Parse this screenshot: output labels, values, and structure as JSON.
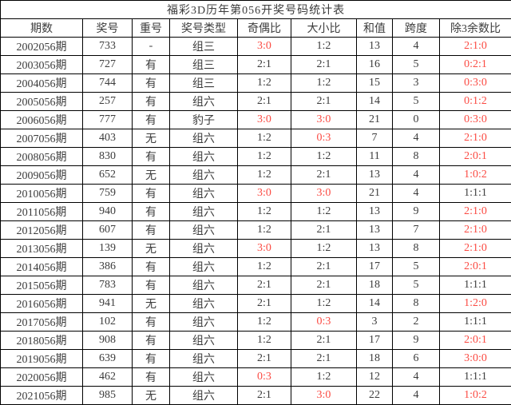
{
  "title": "福彩3D历年第056开奖号码统计表",
  "colors": {
    "highlight_red": "#fb4a42",
    "text_dark": "#3c3c3c",
    "border": "#000000",
    "background": "#ffffff"
  },
  "chart_data": {
    "type": "table",
    "title": "福彩3D历年第056开奖号码统计表",
    "columns": [
      {
        "key": "period",
        "label": "期数"
      },
      {
        "key": "number",
        "label": "奖号"
      },
      {
        "key": "repeat",
        "label": "重号"
      },
      {
        "key": "type",
        "label": "奖号类型"
      },
      {
        "key": "odd_even",
        "label": "奇偶比"
      },
      {
        "key": "big_small",
        "label": "大小比"
      },
      {
        "key": "sum",
        "label": "和值"
      },
      {
        "key": "span",
        "label": "跨度"
      },
      {
        "key": "mod3",
        "label": "除3余数比"
      }
    ],
    "rows": [
      {
        "period": "2002056期",
        "number": "733",
        "repeat": "-",
        "type": "组三",
        "odd_even": {
          "text": "3:0",
          "red": true
        },
        "big_small": {
          "text": "1:2",
          "red": false
        },
        "sum": "13",
        "span": "4",
        "mod3": {
          "text": "2:1:0",
          "red": true
        }
      },
      {
        "period": "2003056期",
        "number": "727",
        "repeat": "有",
        "type": "组三",
        "odd_even": {
          "text": "2:1",
          "red": false
        },
        "big_small": {
          "text": "2:1",
          "red": false
        },
        "sum": "16",
        "span": "5",
        "mod3": {
          "text": "0:2:1",
          "red": true
        }
      },
      {
        "period": "2004056期",
        "number": "744",
        "repeat": "有",
        "type": "组三",
        "odd_even": {
          "text": "1:2",
          "red": false
        },
        "big_small": {
          "text": "1:2",
          "red": false
        },
        "sum": "15",
        "span": "3",
        "mod3": {
          "text": "0:3:0",
          "red": true
        }
      },
      {
        "period": "2005056期",
        "number": "257",
        "repeat": "有",
        "type": "组六",
        "odd_even": {
          "text": "2:1",
          "red": false
        },
        "big_small": {
          "text": "2:1",
          "red": false
        },
        "sum": "14",
        "span": "5",
        "mod3": {
          "text": "0:1:2",
          "red": true
        }
      },
      {
        "period": "2006056期",
        "number": "777",
        "repeat": "有",
        "type": "豹子",
        "odd_even": {
          "text": "3:0",
          "red": true
        },
        "big_small": {
          "text": "3:0",
          "red": true
        },
        "sum": "21",
        "span": "0",
        "mod3": {
          "text": "0:3:0",
          "red": true
        }
      },
      {
        "period": "2007056期",
        "number": "403",
        "repeat": "无",
        "type": "组六",
        "odd_even": {
          "text": "1:2",
          "red": false
        },
        "big_small": {
          "text": "0:3",
          "red": true
        },
        "sum": "7",
        "span": "4",
        "mod3": {
          "text": "2:1:0",
          "red": true
        }
      },
      {
        "period": "2008056期",
        "number": "830",
        "repeat": "有",
        "type": "组六",
        "odd_even": {
          "text": "1:2",
          "red": false
        },
        "big_small": {
          "text": "1:2",
          "red": false
        },
        "sum": "11",
        "span": "8",
        "mod3": {
          "text": "2:0:1",
          "red": true
        }
      },
      {
        "period": "2009056期",
        "number": "652",
        "repeat": "无",
        "type": "组六",
        "odd_even": {
          "text": "1:2",
          "red": false
        },
        "big_small": {
          "text": "2:1",
          "red": false
        },
        "sum": "13",
        "span": "4",
        "mod3": {
          "text": "1:0:2",
          "red": true
        }
      },
      {
        "period": "2010056期",
        "number": "759",
        "repeat": "有",
        "type": "组六",
        "odd_even": {
          "text": "3:0",
          "red": true
        },
        "big_small": {
          "text": "3:0",
          "red": true
        },
        "sum": "21",
        "span": "4",
        "mod3": {
          "text": "1:1:1",
          "red": false
        }
      },
      {
        "period": "2011056期",
        "number": "940",
        "repeat": "有",
        "type": "组六",
        "odd_even": {
          "text": "1:2",
          "red": false
        },
        "big_small": {
          "text": "1:2",
          "red": false
        },
        "sum": "13",
        "span": "9",
        "mod3": {
          "text": "2:1:0",
          "red": true
        }
      },
      {
        "period": "2012056期",
        "number": "607",
        "repeat": "有",
        "type": "组六",
        "odd_even": {
          "text": "1:2",
          "red": false
        },
        "big_small": {
          "text": "2:1",
          "red": false
        },
        "sum": "13",
        "span": "7",
        "mod3": {
          "text": "2:1:0",
          "red": true
        }
      },
      {
        "period": "2013056期",
        "number": "139",
        "repeat": "无",
        "type": "组六",
        "odd_even": {
          "text": "3:0",
          "red": true
        },
        "big_small": {
          "text": "1:2",
          "red": false
        },
        "sum": "13",
        "span": "8",
        "mod3": {
          "text": "2:1:0",
          "red": true
        }
      },
      {
        "period": "2014056期",
        "number": "386",
        "repeat": "有",
        "type": "组六",
        "odd_even": {
          "text": "1:2",
          "red": false
        },
        "big_small": {
          "text": "2:1",
          "red": false
        },
        "sum": "17",
        "span": "5",
        "mod3": {
          "text": "2:0:1",
          "red": true
        }
      },
      {
        "period": "2015056期",
        "number": "783",
        "repeat": "有",
        "type": "组六",
        "odd_even": {
          "text": "2:1",
          "red": false
        },
        "big_small": {
          "text": "2:1",
          "red": false
        },
        "sum": "18",
        "span": "5",
        "mod3": {
          "text": "1:1:1",
          "red": false
        }
      },
      {
        "period": "2016056期",
        "number": "941",
        "repeat": "无",
        "type": "组六",
        "odd_even": {
          "text": "2:1",
          "red": false
        },
        "big_small": {
          "text": "1:2",
          "red": false
        },
        "sum": "14",
        "span": "8",
        "mod3": {
          "text": "1:2:0",
          "red": true
        }
      },
      {
        "period": "2017056期",
        "number": "102",
        "repeat": "有",
        "type": "组六",
        "odd_even": {
          "text": "1:2",
          "red": false
        },
        "big_small": {
          "text": "0:3",
          "red": true
        },
        "sum": "3",
        "span": "2",
        "mod3": {
          "text": "1:1:1",
          "red": false
        }
      },
      {
        "period": "2018056期",
        "number": "908",
        "repeat": "有",
        "type": "组六",
        "odd_even": {
          "text": "1:2",
          "red": false
        },
        "big_small": {
          "text": "2:1",
          "red": false
        },
        "sum": "17",
        "span": "9",
        "mod3": {
          "text": "2:0:1",
          "red": true
        }
      },
      {
        "period": "2019056期",
        "number": "639",
        "repeat": "有",
        "type": "组六",
        "odd_even": {
          "text": "2:1",
          "red": false
        },
        "big_small": {
          "text": "2:1",
          "red": false
        },
        "sum": "18",
        "span": "6",
        "mod3": {
          "text": "3:0:0",
          "red": true
        }
      },
      {
        "period": "2020056期",
        "number": "462",
        "repeat": "有",
        "type": "组六",
        "odd_even": {
          "text": "0:3",
          "red": true
        },
        "big_small": {
          "text": "1:2",
          "red": false
        },
        "sum": "12",
        "span": "4",
        "mod3": {
          "text": "1:1:1",
          "red": false
        }
      },
      {
        "period": "2021056期",
        "number": "985",
        "repeat": "无",
        "type": "组六",
        "odd_even": {
          "text": "2:1",
          "red": false
        },
        "big_small": {
          "text": "3:0",
          "red": true
        },
        "sum": "22",
        "span": "4",
        "mod3": {
          "text": "1:0:2",
          "red": true
        }
      }
    ]
  }
}
